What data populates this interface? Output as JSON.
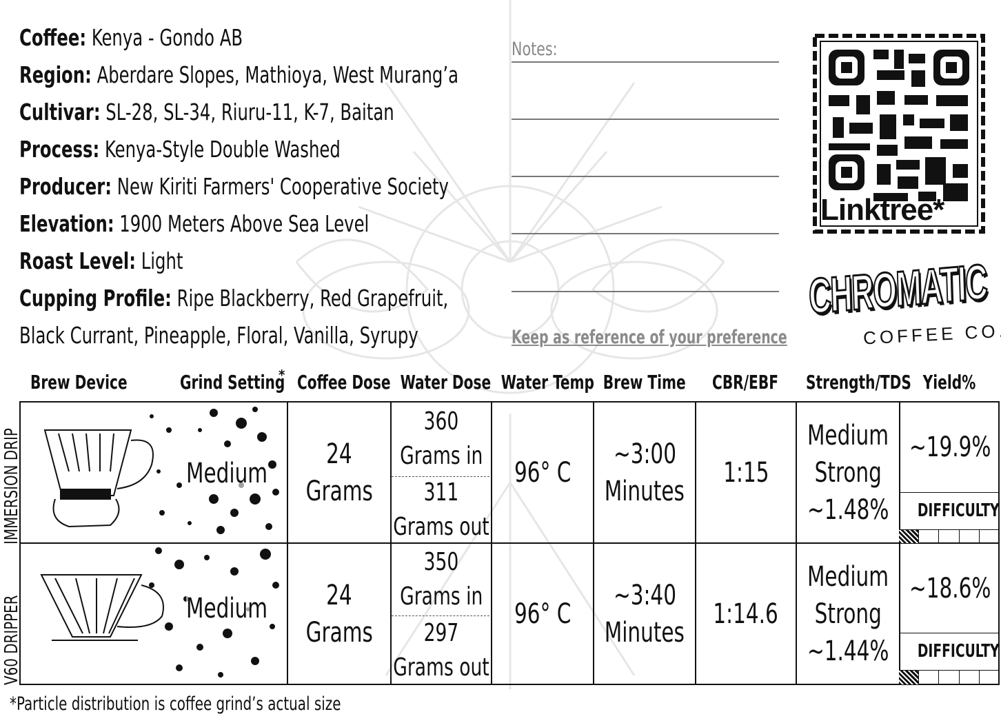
{
  "info": {
    "coffee": {
      "label": "Coffee:",
      "value": "Kenya - Gondo AB"
    },
    "region": {
      "label": "Region:",
      "value": "Aberdare Slopes, Mathioya, West Murang’a"
    },
    "cultivar": {
      "label": "Cultivar:",
      "value": "SL-28, SL-34, Riuru-11, K-7, Baitan"
    },
    "process": {
      "label": "Process:",
      "value": "Kenya-Style Double Washed"
    },
    "producer": {
      "label": "Producer:",
      "value": "New Kiriti Farmers' Cooperative Society"
    },
    "elevation": {
      "label": "Elevation:",
      "value": "1900 Meters Above Sea Level"
    },
    "roast": {
      "label": "Roast Level:",
      "value": "Light"
    },
    "cupping": {
      "label": "Cupping Profile:",
      "value": "Ripe Blackberry, Red Grapefruit,",
      "value2": "Black Currant, Pineapple, Floral, Vanilla, Syrupy"
    }
  },
  "notes": {
    "label": "Notes:",
    "reference": "Keep as reference of your preference"
  },
  "qr": {
    "word": "Linktree*",
    "icon": "qr-code-icon"
  },
  "logo": {
    "main": "CHROMATIC",
    "sub": "COFFEE CO."
  },
  "headers": {
    "device": "Brew  Device",
    "grind": "Grind Setting",
    "grind_mark": "*",
    "dose": "Coffee Dose",
    "water": "Water Dose",
    "temp": "Water Temp",
    "time": "Brew Time",
    "ratio": "CBR/EBF",
    "strength": "Strength/TDS",
    "yield": "Yield%"
  },
  "rows": [
    {
      "side": "IMMERSION DRIP",
      "icon": "clever-dripper-icon",
      "grind": "Medium",
      "dose1": "24",
      "dose2": "Grams",
      "water_in1": "360",
      "water_in2": "Grams in",
      "water_out1": "311",
      "water_out2": "Grams out",
      "temp": "96° C",
      "time1": "~3:00",
      "time2": "Minutes",
      "ratio": "1:15",
      "strength1": "Medium",
      "strength2": "Strong",
      "tds": "~1.48%",
      "yield": "~19.9%",
      "difficulty_label": "DIFFICULTY",
      "difficulty_level": 1,
      "difficulty_max": 5
    },
    {
      "side": "V60 DRIPPER",
      "icon": "v60-dripper-icon",
      "grind": "Medium",
      "dose1": "24",
      "dose2": "Grams",
      "water_in1": "350",
      "water_in2": "Grams in",
      "water_out1": "297",
      "water_out2": "Grams out",
      "temp": "96° C",
      "time1": "~3:40",
      "time2": "Minutes",
      "ratio": "1:14.6",
      "strength1": "Medium",
      "strength2": "Strong",
      "tds": "~1.44%",
      "yield": "~18.6%",
      "difficulty_label": "DIFFICULTY",
      "difficulty_level": 1,
      "difficulty_max": 5
    }
  ],
  "footnote": "*Particle distribution is coffee grind’s actual size"
}
